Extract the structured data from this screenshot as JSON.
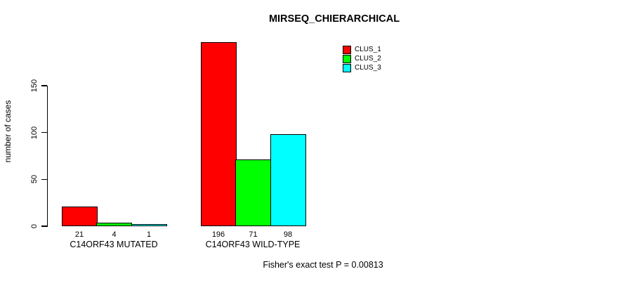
{
  "title": "MIRSEQ_CHIERARCHICAL",
  "accent_colors": {
    "clus_1": "#FF0000",
    "clus_2": "#00FF00",
    "clus_3": "#00FFFF",
    "axis": "#000000",
    "background": "#FFFFFF"
  },
  "chart_data": {
    "type": "bar",
    "title": "MIRSEQ_CHIERARCHICAL",
    "xlabel": "",
    "ylabel": "number of cases",
    "ylim": [
      0,
      150
    ],
    "y_ticks": [
      0,
      50,
      100,
      150
    ],
    "grid": false,
    "legend_position": "top-right",
    "categories": [
      "C14ORF43 MUTATED",
      "C14ORF43 WILD-TYPE"
    ],
    "series": [
      {
        "name": "CLUS_1",
        "color": "#FF0000",
        "values": [
          21,
          196
        ]
      },
      {
        "name": "CLUS_2",
        "color": "#00FF00",
        "values": [
          4,
          71
        ]
      },
      {
        "name": "CLUS_3",
        "color": "#00FFFF",
        "values": [
          1,
          98
        ]
      }
    ],
    "bar_value_labels": [
      [
        21,
        4,
        1
      ],
      [
        196,
        71,
        98
      ]
    ],
    "annotation": "Fisher's exact test P = 0.00813"
  }
}
